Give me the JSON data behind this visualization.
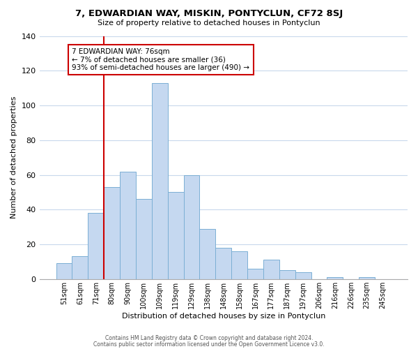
{
  "title": "7, EDWARDIAN WAY, MISKIN, PONTYCLUN, CF72 8SJ",
  "subtitle": "Size of property relative to detached houses in Pontyclun",
  "xlabel": "Distribution of detached houses by size in Pontyclun",
  "ylabel": "Number of detached properties",
  "bar_labels": [
    "51sqm",
    "61sqm",
    "71sqm",
    "80sqm",
    "90sqm",
    "100sqm",
    "109sqm",
    "119sqm",
    "129sqm",
    "138sqm",
    "148sqm",
    "158sqm",
    "167sqm",
    "177sqm",
    "187sqm",
    "197sqm",
    "206sqm",
    "216sqm",
    "226sqm",
    "235sqm",
    "245sqm"
  ],
  "bar_values": [
    9,
    13,
    38,
    53,
    62,
    46,
    113,
    50,
    60,
    29,
    18,
    16,
    6,
    11,
    5,
    4,
    0,
    1,
    0,
    1,
    0
  ],
  "bar_color": "#c5d8f0",
  "bar_edge_color": "#7bafd4",
  "annotation_box_text": "7 EDWARDIAN WAY: 76sqm\n← 7% of detached houses are smaller (36)\n93% of semi-detached houses are larger (490) →",
  "vline_color": "#cc0000",
  "vline_index": 2.5,
  "ylim": [
    0,
    140
  ],
  "yticks": [
    0,
    20,
    40,
    60,
    80,
    100,
    120,
    140
  ],
  "footer1": "Contains HM Land Registry data © Crown copyright and database right 2024.",
  "footer2": "Contains public sector information licensed under the Open Government Licence v3.0.",
  "bg_color": "#ffffff",
  "grid_color": "#c8d8ec"
}
